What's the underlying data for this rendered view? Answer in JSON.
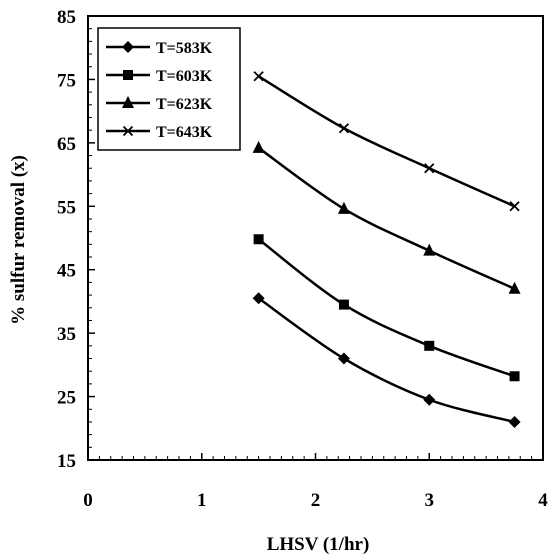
{
  "chart_data": {
    "type": "line",
    "title": "",
    "xlabel": "LHSV (1/hr)",
    "ylabel": "% sulfur removal (x)",
    "xlim": [
      0,
      4
    ],
    "ylim": [
      15,
      85
    ],
    "xticks": [
      0,
      1,
      2,
      3,
      4
    ],
    "yticks": [
      15,
      25,
      35,
      45,
      55,
      65,
      75,
      85
    ],
    "grid": false,
    "legend_position": "top-left",
    "line_color": "#000000",
    "x": [
      1.5,
      2.25,
      3.0,
      3.75
    ],
    "series": [
      {
        "name": "T=583K",
        "marker": "diamond",
        "values": [
          40.5,
          31.0,
          24.5,
          21.0
        ]
      },
      {
        "name": "T=603K",
        "marker": "square",
        "values": [
          49.8,
          39.5,
          33.0,
          28.2
        ]
      },
      {
        "name": "T=623K",
        "marker": "triangle",
        "values": [
          64.2,
          54.6,
          48.0,
          42.0
        ]
      },
      {
        "name": "T=643K",
        "marker": "x",
        "values": [
          75.5,
          67.3,
          61.0,
          55.0
        ]
      }
    ]
  }
}
